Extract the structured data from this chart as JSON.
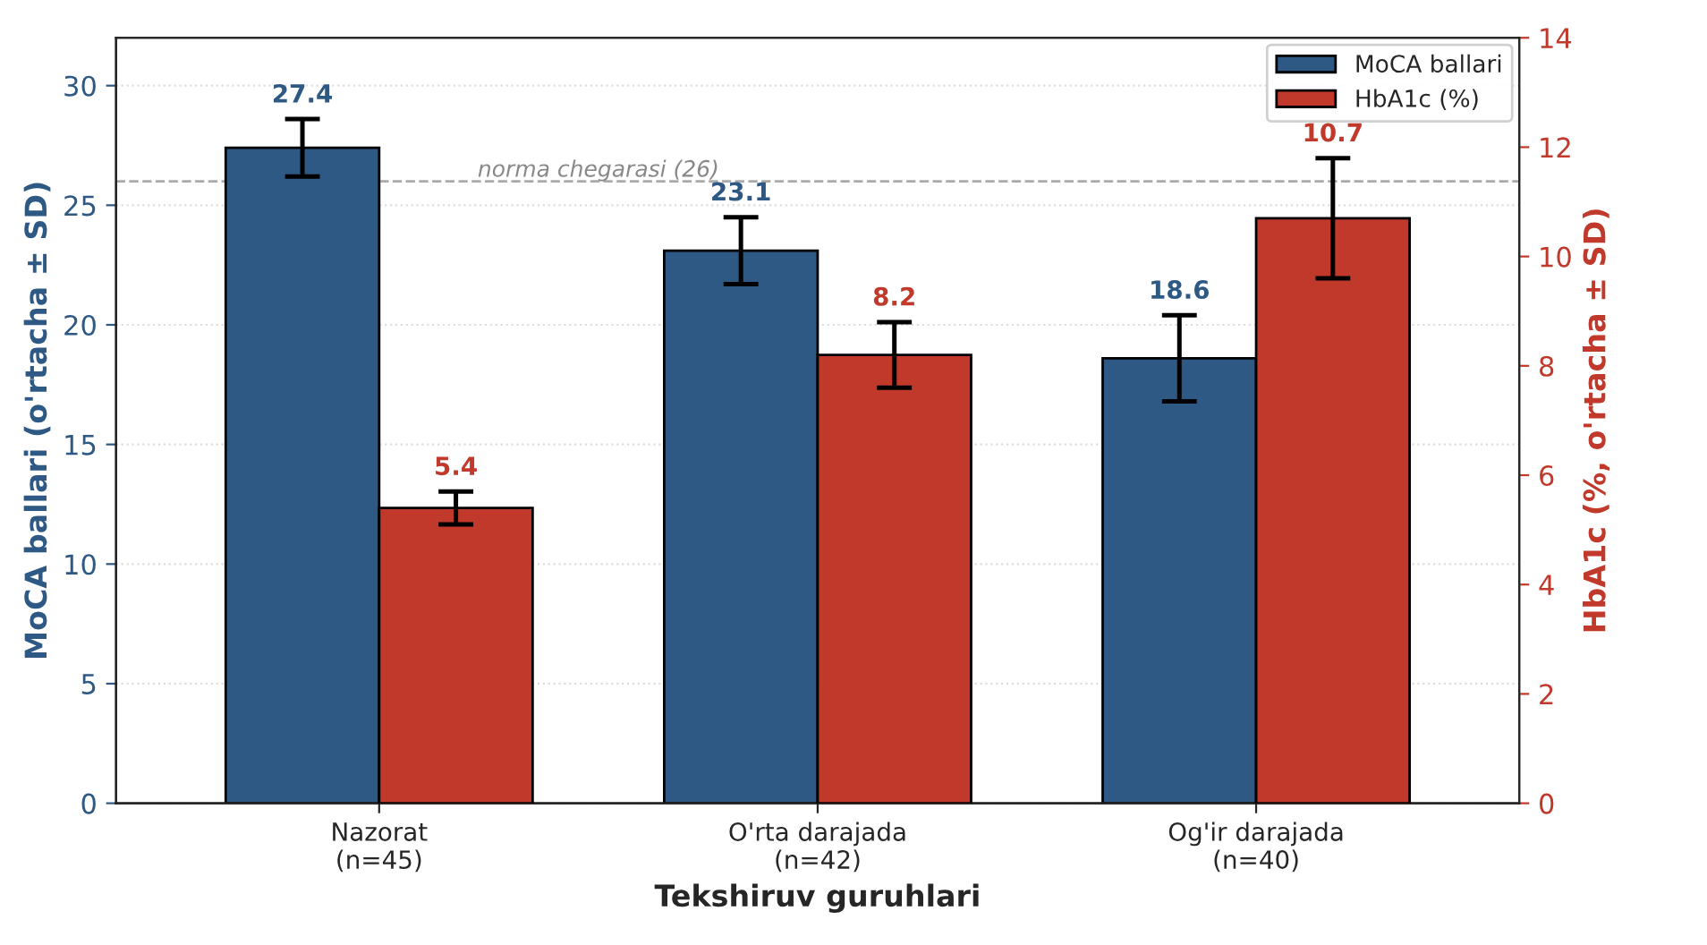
{
  "chart_data": {
    "type": "bar",
    "xlabel": "Tekshiruv guruhlari",
    "ylabel": "MoCA ballari (o'rtacha ± SD)",
    "y2label": "HbA1c (%, o'rtacha ± SD)",
    "categories": [
      "Nazorat\n(n=45)",
      "O'rta darajada\n(n=42)",
      "Og'ir darajada\n(n=40)"
    ],
    "series": [
      {
        "name": "MoCA ballari",
        "color": "#2e5984",
        "values": [
          27.4,
          23.1,
          18.6
        ],
        "errors": [
          1.2,
          1.4,
          1.8
        ]
      },
      {
        "name": "HbA1c (%)",
        "color": "#c0392b",
        "values": [
          5.4,
          8.2,
          10.7
        ],
        "errors": [
          0.3,
          0.6,
          1.1
        ],
        "axis": "y2"
      }
    ],
    "ylim": [
      0,
      32
    ],
    "yticks": [
      0,
      5,
      10,
      15,
      20,
      25,
      30
    ],
    "y2lim": [
      0,
      14
    ],
    "y2ticks": [
      0,
      2,
      4,
      6,
      8,
      10,
      12,
      14
    ],
    "ref_lines": [
      {
        "axis": "y",
        "value": 26,
        "label": "norma chegarasi (26)",
        "color": "#aaaaaa",
        "line_style": "dashed"
      }
    ],
    "data_labels": true,
    "grid": "y",
    "legend": "top right"
  }
}
